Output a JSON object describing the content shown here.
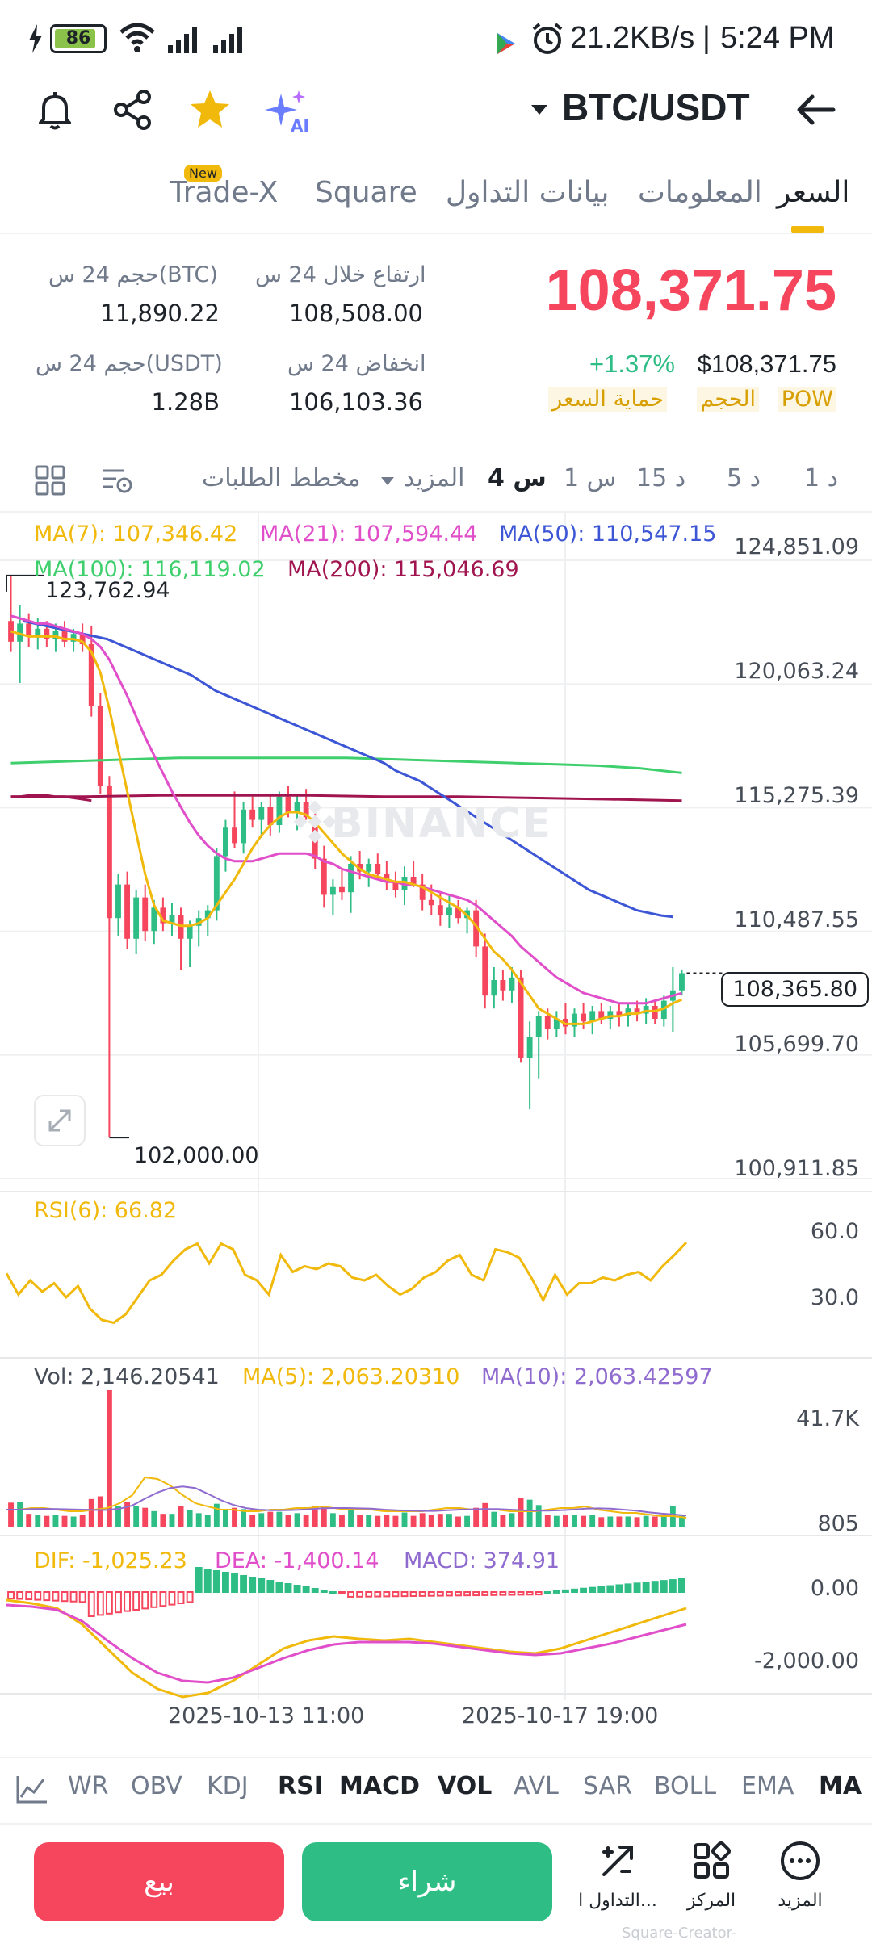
{
  "status_bar": {
    "battery": "86",
    "network_speed": "21.2KB/s",
    "separator": "|",
    "time": "5:24 PM"
  },
  "header": {
    "pair": "BTC/USDT",
    "icons": [
      "bell-icon",
      "share-icon",
      "star-icon",
      "ai-sparkle-icon",
      "back-arrow-icon"
    ],
    "ai_badge": "AI"
  },
  "tabs": [
    {
      "label": "السعر",
      "active": true
    },
    {
      "label": "المعلومات",
      "active": false
    },
    {
      "label": "بيانات التداول",
      "active": false
    },
    {
      "label": "Square",
      "active": false
    },
    {
      "label": "Trade-X",
      "active": false,
      "badge": "New"
    }
  ],
  "ticker": {
    "last_price": "108,371.75",
    "usd_price": "$108,371.75",
    "change": "+1.37%",
    "tags": [
      "POW",
      "الحجم",
      "حماية السعر"
    ],
    "high_label": "ارتفاع خلال 24 س",
    "high_value": "108,508.00",
    "low_label": "انخفاض 24 س",
    "low_value": "106,103.36",
    "vol_btc_label": "حجم 24 س(BTC)",
    "vol_btc_value": "11,890.22",
    "vol_usdt_label": "حجم 24 س(USDT)",
    "vol_usdt_value": "1.28B"
  },
  "intervals": {
    "items": [
      "1 د",
      "5 د",
      "15 د",
      "1 س",
      "4 س"
    ],
    "active": "4 س",
    "more": "المزيد",
    "depth": "مخطط الطلبات"
  },
  "ma_legend": {
    "ma7": "MA(7): 107,346.42",
    "ma21": "MA(21): 107,594.44",
    "ma50": "MA(50): 110,547.15",
    "ma100": "MA(100): 116,119.02",
    "ma200": "MA(200): 115,046.69"
  },
  "colors": {
    "up": "#2ebd85",
    "down": "#f6465d",
    "ma7": "#f0b90b",
    "ma21": "#e14eca",
    "ma50": "#3d56d6",
    "ma100": "#3fcf6d",
    "ma200": "#a0154f",
    "accent": "#f0b90b"
  },
  "chart_axis": {
    "price_ticks": [
      "124,851.09",
      "120,063.24",
      "115,275.39",
      "110,487.55",
      "105,699.70",
      "100,911.85"
    ],
    "current_price_label": "108,365.80",
    "max_label": "123,762.94",
    "min_label": "102,000.00",
    "watermark": "BINANCE",
    "date_labels": [
      "2025-10-13 11:00",
      "2025-10-17 19:00"
    ]
  },
  "rsi": {
    "label": "RSI(6): 66.82",
    "ticks": [
      "60.0",
      "30.0"
    ]
  },
  "volume": {
    "vol_label": "Vol: 2,146.20541",
    "ma5_label": "MA(5): 2,063.20310",
    "ma10_label": "MA(10): 2,063.42597",
    "ticks": [
      "41.7K",
      "805"
    ]
  },
  "macd": {
    "dif_label": "DIF: -1,025.23",
    "dea_label": "DEA: -1,400.14",
    "macd_label": "MACD: 374.91",
    "ticks": [
      "0.00",
      "-2,000.00"
    ]
  },
  "chart_data": {
    "type": "candlestick",
    "title": "BTC/USDT 4h",
    "ylim": [
      100911.85,
      124851.09
    ],
    "candles_approx": [
      {
        "o": 122000,
        "h": 123762.94,
        "l": 120800,
        "c": 121200
      },
      {
        "o": 121200,
        "h": 122600,
        "l": 119600,
        "c": 121900
      },
      {
        "o": 121900,
        "h": 122300,
        "l": 121000,
        "c": 121400
      },
      {
        "o": 121400,
        "h": 122100,
        "l": 120900,
        "c": 121700
      },
      {
        "o": 121700,
        "h": 122000,
        "l": 121000,
        "c": 121300
      },
      {
        "o": 121300,
        "h": 121900,
        "l": 120800,
        "c": 121600
      },
      {
        "o": 121600,
        "h": 122000,
        "l": 121000,
        "c": 121200
      },
      {
        "o": 121200,
        "h": 121700,
        "l": 120800,
        "c": 121500
      },
      {
        "o": 121500,
        "h": 121900,
        "l": 120800,
        "c": 121100
      },
      {
        "o": 121100,
        "h": 121800,
        "l": 118300,
        "c": 118700
      },
      {
        "o": 118700,
        "h": 119200,
        "l": 115300,
        "c": 115600
      },
      {
        "o": 115600,
        "h": 116000,
        "l": 102000,
        "c": 110500
      },
      {
        "o": 110500,
        "h": 112200,
        "l": 109800,
        "c": 111800
      },
      {
        "o": 111800,
        "h": 112300,
        "l": 109300,
        "c": 109700
      },
      {
        "o": 109700,
        "h": 111600,
        "l": 109100,
        "c": 111300
      },
      {
        "o": 111300,
        "h": 111800,
        "l": 109600,
        "c": 110000
      },
      {
        "o": 110000,
        "h": 111200,
        "l": 109500,
        "c": 110900
      },
      {
        "o": 110900,
        "h": 111300,
        "l": 110000,
        "c": 110300
      },
      {
        "o": 110300,
        "h": 111100,
        "l": 109800,
        "c": 110600
      },
      {
        "o": 110600,
        "h": 110900,
        "l": 108500,
        "c": 109700
      },
      {
        "o": 109700,
        "h": 110400,
        "l": 108600,
        "c": 110200
      },
      {
        "o": 110200,
        "h": 110800,
        "l": 109400,
        "c": 110500
      },
      {
        "o": 110500,
        "h": 111000,
        "l": 109800,
        "c": 110800
      },
      {
        "o": 110800,
        "h": 113200,
        "l": 110400,
        "c": 112900
      },
      {
        "o": 112900,
        "h": 114300,
        "l": 112300,
        "c": 114000
      },
      {
        "o": 114000,
        "h": 115400,
        "l": 113200,
        "c": 113400
      },
      {
        "o": 113400,
        "h": 115000,
        "l": 113000,
        "c": 114700
      },
      {
        "o": 114700,
        "h": 115200,
        "l": 114000,
        "c": 114300
      },
      {
        "o": 114300,
        "h": 115000,
        "l": 113600,
        "c": 114800
      },
      {
        "o": 114800,
        "h": 115300,
        "l": 113700,
        "c": 114100
      },
      {
        "o": 114100,
        "h": 115400,
        "l": 113800,
        "c": 115200
      },
      {
        "o": 115200,
        "h": 115600,
        "l": 114400,
        "c": 114600
      },
      {
        "o": 114600,
        "h": 115300,
        "l": 113900,
        "c": 115000
      },
      {
        "o": 115000,
        "h": 115500,
        "l": 114300,
        "c": 114400
      },
      {
        "o": 114400,
        "h": 114800,
        "l": 112400,
        "c": 112800
      },
      {
        "o": 112800,
        "h": 113300,
        "l": 110900,
        "c": 111400
      },
      {
        "o": 111400,
        "h": 112000,
        "l": 110600,
        "c": 111700
      },
      {
        "o": 111700,
        "h": 112400,
        "l": 111200,
        "c": 111500
      },
      {
        "o": 111500,
        "h": 112900,
        "l": 110700,
        "c": 112600
      },
      {
        "o": 112600,
        "h": 113100,
        "l": 112000,
        "c": 112300
      },
      {
        "o": 112300,
        "h": 112800,
        "l": 111700,
        "c": 112600
      },
      {
        "o": 112600,
        "h": 113000,
        "l": 112000,
        "c": 112200
      },
      {
        "o": 112200,
        "h": 112700,
        "l": 111600,
        "c": 111900
      },
      {
        "o": 111900,
        "h": 112300,
        "l": 111300,
        "c": 111600
      },
      {
        "o": 111600,
        "h": 112500,
        "l": 111000,
        "c": 112100
      },
      {
        "o": 112100,
        "h": 112700,
        "l": 111700,
        "c": 111800
      },
      {
        "o": 111800,
        "h": 112200,
        "l": 110800,
        "c": 111200
      },
      {
        "o": 111200,
        "h": 111800,
        "l": 110600,
        "c": 111000
      },
      {
        "o": 111000,
        "h": 111500,
        "l": 110200,
        "c": 110600
      },
      {
        "o": 110600,
        "h": 111400,
        "l": 110100,
        "c": 110900
      },
      {
        "o": 110900,
        "h": 111200,
        "l": 110300,
        "c": 110500
      },
      {
        "o": 110500,
        "h": 110900,
        "l": 109900,
        "c": 110800
      },
      {
        "o": 110800,
        "h": 111200,
        "l": 109000,
        "c": 109400
      },
      {
        "o": 109400,
        "h": 109900,
        "l": 107000,
        "c": 107500
      },
      {
        "o": 107500,
        "h": 108600,
        "l": 107000,
        "c": 108100
      },
      {
        "o": 108100,
        "h": 108500,
        "l": 107300,
        "c": 107700
      },
      {
        "o": 107700,
        "h": 108600,
        "l": 107200,
        "c": 108200
      },
      {
        "o": 108200,
        "h": 108500,
        "l": 104900,
        "c": 105100
      },
      {
        "o": 105100,
        "h": 106500,
        "l": 103100,
        "c": 105900
      },
      {
        "o": 105900,
        "h": 106900,
        "l": 104300,
        "c": 106700
      },
      {
        "o": 106700,
        "h": 107000,
        "l": 105800,
        "c": 106200
      },
      {
        "o": 106200,
        "h": 106900,
        "l": 105900,
        "c": 106600
      },
      {
        "o": 106600,
        "h": 107200,
        "l": 106000,
        "c": 106300
      },
      {
        "o": 106300,
        "h": 107000,
        "l": 105900,
        "c": 106800
      },
      {
        "o": 106800,
        "h": 107200,
        "l": 106200,
        "c": 106500
      },
      {
        "o": 106500,
        "h": 107100,
        "l": 106000,
        "c": 106900
      },
      {
        "o": 106900,
        "h": 107200,
        "l": 106400,
        "c": 106600
      },
      {
        "o": 106600,
        "h": 107100,
        "l": 106200,
        "c": 106900
      },
      {
        "o": 106900,
        "h": 107200,
        "l": 106300,
        "c": 106700
      },
      {
        "o": 106700,
        "h": 107200,
        "l": 106300,
        "c": 107000
      },
      {
        "o": 107000,
        "h": 107300,
        "l": 106500,
        "c": 106800
      },
      {
        "o": 106800,
        "h": 107400,
        "l": 106400,
        "c": 107100
      },
      {
        "o": 107100,
        "h": 107300,
        "l": 106400,
        "c": 106600
      },
      {
        "o": 106600,
        "h": 107500,
        "l": 106300,
        "c": 107300
      },
      {
        "o": 107300,
        "h": 108600,
        "l": 106100,
        "c": 107700
      },
      {
        "o": 107700,
        "h": 108508,
        "l": 107500,
        "c": 108365.8
      }
    ],
    "ma7": [
      121600,
      121500,
      121400,
      121400,
      121400,
      121400,
      121300,
      121300,
      121200,
      120800,
      120000,
      118600,
      117000,
      115400,
      113800,
      112200,
      111000,
      110400,
      110300,
      110200,
      110200,
      110300,
      110500,
      111000,
      111500,
      112000,
      112600,
      113200,
      113700,
      114100,
      114400,
      114600,
      114600,
      114500,
      114200,
      113800,
      113400,
      113000,
      112700,
      112400,
      112200,
      112100,
      112000,
      111900,
      111900,
      111800,
      111700,
      111500,
      111300,
      111100,
      110900,
      110600,
      110200,
      109700,
      109200,
      108900,
      108500,
      108000,
      107500,
      107000,
      106800,
      106600,
      106400,
      106400,
      106400,
      106500,
      106600,
      106700,
      106700,
      106800,
      106800,
      106900,
      106900,
      107000,
      107200,
      107346.42
    ],
    "ma21": [
      122200,
      122100,
      122000,
      121900,
      121900,
      121800,
      121700,
      121600,
      121500,
      121300,
      121000,
      120500,
      119800,
      119100,
      118300,
      117500,
      116800,
      116100,
      115400,
      114800,
      114200,
      113700,
      113300,
      113000,
      112800,
      112700,
      112700,
      112700,
      112800,
      112900,
      113000,
      113000,
      113000,
      113000,
      112900,
      112700,
      112600,
      112400,
      112300,
      112200,
      112100,
      112000,
      111900,
      111900,
      111800,
      111800,
      111700,
      111600,
      111500,
      111400,
      111300,
      111200,
      111000,
      110700,
      110400,
      110100,
      109800,
      109400,
      109100,
      108800,
      108500,
      108200,
      108000,
      107800,
      107600,
      107500,
      107400,
      107300,
      107200,
      107200,
      107200,
      107200,
      107300,
      107400,
      107500,
      107594.44
    ],
    "ma50": [
      122000,
      121900,
      121800,
      121700,
      121600,
      121500,
      121400,
      121300,
      121100,
      120900,
      120700,
      120500,
      120300,
      120100,
      119900,
      119600,
      119300,
      119100,
      118900,
      118700,
      118500,
      118300,
      118100,
      117900,
      117700,
      117500,
      117300,
      117100,
      116900,
      116700,
      116500,
      116200,
      116000,
      115800,
      115500,
      115200,
      114900,
      114600,
      114300,
      114000,
      113700,
      113400,
      113100,
      112800,
      112500,
      112200,
      111900,
      111600,
      111400,
      111200,
      111000,
      110800,
      110700,
      110600,
      110547.15
    ],
    "ma100": [
      116500,
      116550,
      116600,
      116650,
      116700,
      116700,
      116700,
      116700,
      116700,
      116650,
      116600,
      116550,
      116500,
      116450,
      116400,
      116300,
      116119.02
    ],
    "ma200": [
      115200,
      115200,
      115250,
      115250,
      115250,
      115200,
      115200,
      115150,
      115100,
      115046.69
    ]
  },
  "indicator_tabs": {
    "items": [
      "MA",
      "EMA",
      "BOLL",
      "SAR",
      "AVL",
      "VOL",
      "MACD",
      "RSI",
      "KDJ",
      "OBV",
      "WR"
    ],
    "active": [
      "MA",
      "VOL",
      "MACD",
      "RSI"
    ]
  },
  "bottom_bar": {
    "more_label": "المزيد",
    "center_label": "المركز",
    "trade_label": "التداول ا...",
    "buy_label": "شراء",
    "sell_label": "بيع",
    "watermark": "Square-Creator-"
  }
}
